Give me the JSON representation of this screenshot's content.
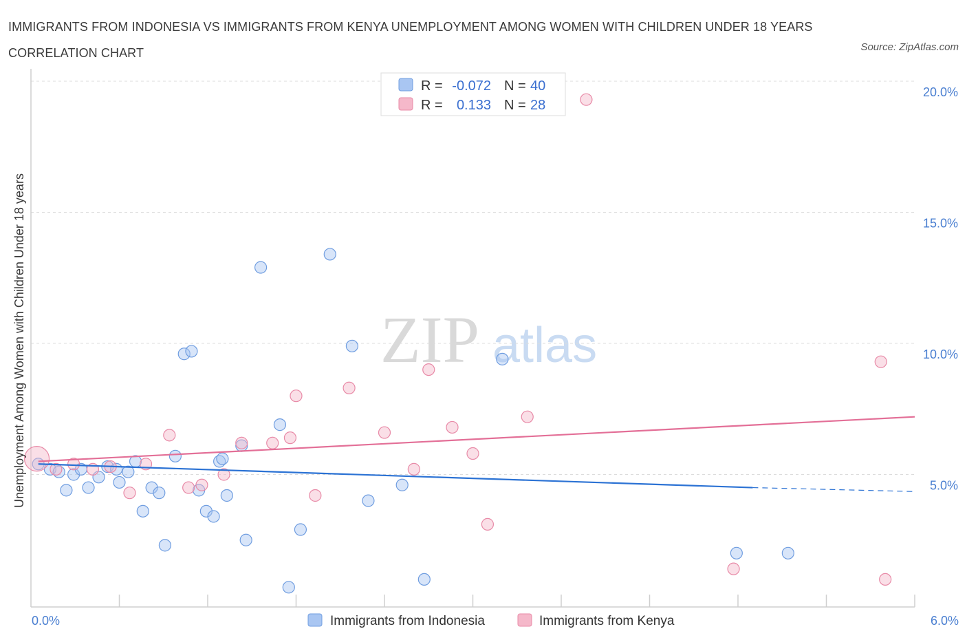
{
  "header": {
    "title": "IMMIGRANTS FROM INDONESIA VS IMMIGRANTS FROM KENYA UNEMPLOYMENT AMONG WOMEN WITH CHILDREN UNDER 18 YEARS CORRELATION CHART",
    "source": "Source: ZipAtlas.com"
  },
  "watermark": {
    "zip": "ZIP",
    "atlas": "atlas"
  },
  "legend_top": {
    "rows": [
      {
        "r_label": "R =",
        "r_value": "-0.072",
        "n_label": "N =",
        "n_value": "40",
        "color": "#a9c6f2"
      },
      {
        "r_label": "R =",
        "r_value": "0.133",
        "n_label": "N =",
        "n_value": "28",
        "color": "#f5b8ca"
      }
    ]
  },
  "legend_bottom": {
    "items": [
      {
        "label": "Immigrants from Indonesia",
        "color": "#a9c6f2"
      },
      {
        "label": "Immigrants from Kenya",
        "color": "#f5b8ca"
      }
    ]
  },
  "chart_data": {
    "type": "scatter",
    "title": "IMMIGRANTS FROM INDONESIA VS IMMIGRANTS FROM KENYA UNEMPLOYMENT AMONG WOMEN WITH CHILDREN UNDER 18 YEARS CORRELATION CHART",
    "ylabel": "Unemployment Among Women with Children Under 18 years",
    "xlabel": "",
    "xlim": [
      0,
      6
    ],
    "ylim": [
      0,
      20.5
    ],
    "x_ticks": [
      "0.0%",
      "6.0%"
    ],
    "y_ticks": [
      {
        "value": 5,
        "label": "5.0%"
      },
      {
        "value": 10,
        "label": "10.0%"
      },
      {
        "value": 15,
        "label": "15.0%"
      },
      {
        "value": 20,
        "label": "20.0%"
      }
    ],
    "grid": "horizontal dashed",
    "series": [
      {
        "name": "Immigrants from Indonesia",
        "color": "#6f9de0",
        "fill": "#a9c6f2",
        "trend": {
          "x0": 0.05,
          "y0": 5.4,
          "x1": 4.9,
          "y1": 4.5,
          "dash_to_x": 6.0,
          "dash_to_y": 4.35,
          "color": "#2b72d4"
        },
        "points": [
          [
            0.05,
            5.4
          ],
          [
            0.13,
            5.2
          ],
          [
            0.19,
            5.1
          ],
          [
            0.24,
            4.4
          ],
          [
            0.29,
            5.0
          ],
          [
            0.34,
            5.2
          ],
          [
            0.39,
            4.5
          ],
          [
            0.46,
            4.9
          ],
          [
            0.52,
            5.3
          ],
          [
            0.6,
            4.7
          ],
          [
            0.66,
            5.1
          ],
          [
            0.71,
            5.5
          ],
          [
            0.76,
            3.6
          ],
          [
            0.82,
            4.5
          ],
          [
            0.87,
            4.3
          ],
          [
            0.91,
            2.3
          ],
          [
            0.98,
            5.7
          ],
          [
            1.04,
            9.6
          ],
          [
            1.09,
            9.7
          ],
          [
            1.14,
            4.4
          ],
          [
            1.19,
            3.6
          ],
          [
            1.24,
            3.4
          ],
          [
            1.28,
            5.5
          ],
          [
            1.33,
            4.2
          ],
          [
            1.43,
            6.1
          ],
          [
            1.46,
            2.5
          ],
          [
            1.56,
            12.9
          ],
          [
            1.69,
            6.9
          ],
          [
            1.75,
            0.7
          ],
          [
            1.83,
            2.9
          ],
          [
            2.03,
            13.4
          ],
          [
            2.18,
            9.9
          ],
          [
            2.29,
            4.0
          ],
          [
            2.52,
            4.6
          ],
          [
            2.67,
            1.0
          ],
          [
            3.2,
            9.4
          ],
          [
            4.79,
            2.0
          ],
          [
            5.14,
            2.0
          ],
          [
            0.58,
            5.2
          ],
          [
            1.3,
            5.6
          ]
        ]
      },
      {
        "name": "Immigrants from Kenya",
        "color": "#e88aa7",
        "fill": "#f5b8ca",
        "trend": {
          "x0": 0.05,
          "y0": 5.5,
          "x1": 6.0,
          "y1": 7.2,
          "color": "#e36f97"
        },
        "points": [
          [
            0.04,
            5.6
          ],
          [
            0.17,
            5.2
          ],
          [
            0.29,
            5.4
          ],
          [
            0.42,
            5.2
          ],
          [
            0.54,
            5.3
          ],
          [
            0.67,
            4.3
          ],
          [
            0.78,
            5.4
          ],
          [
            0.94,
            6.5
          ],
          [
            1.07,
            4.5
          ],
          [
            1.16,
            4.6
          ],
          [
            1.31,
            5.0
          ],
          [
            1.43,
            6.2
          ],
          [
            1.64,
            6.2
          ],
          [
            1.76,
            6.4
          ],
          [
            1.8,
            8.0
          ],
          [
            1.93,
            4.2
          ],
          [
            2.16,
            8.3
          ],
          [
            2.4,
            6.6
          ],
          [
            2.6,
            5.2
          ],
          [
            2.7,
            9.0
          ],
          [
            2.86,
            6.8
          ],
          [
            3.0,
            5.8
          ],
          [
            3.1,
            3.1
          ],
          [
            3.37,
            7.2
          ],
          [
            3.77,
            19.3
          ],
          [
            4.77,
            1.4
          ],
          [
            5.77,
            9.3
          ],
          [
            5.8,
            1.0
          ]
        ]
      }
    ]
  }
}
